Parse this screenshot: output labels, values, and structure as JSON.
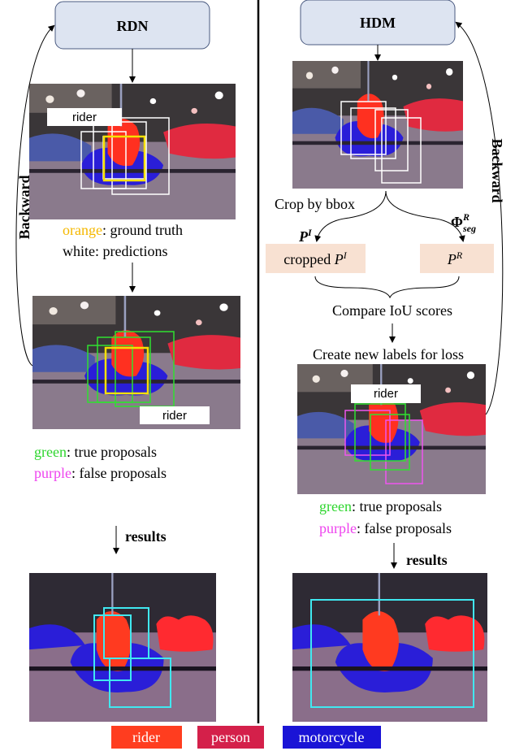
{
  "left": {
    "title": "RDN",
    "backward": "Backward",
    "image1_label": "rider",
    "legend_gt": {
      "color_word": "orange",
      "rest": ": ground truth"
    },
    "legend_pred": {
      "color_word": "white",
      "rest": ": predictions"
    },
    "image2_label": "rider",
    "legend_true": {
      "color_word": "green",
      "rest": ": true proposals"
    },
    "legend_false": {
      "color_word": "purple",
      "rest": ": false proposals"
    },
    "results": "results"
  },
  "right": {
    "title": "HDM",
    "backward": "Backward",
    "crop": "Crop by bbox",
    "branch_left": {
      "var": "P",
      "sup": "I"
    },
    "branch_right": {
      "var": "Φ",
      "sup": "R",
      "sub": "seg"
    },
    "box_left": {
      "text": "cropped ",
      "var": "P",
      "sup": "I"
    },
    "box_right": {
      "var": "P",
      "sup": "R"
    },
    "compare": "Compare IoU scores",
    "create": "Create new labels for loss",
    "image2_label": "rider",
    "legend_true": {
      "color_word": "green",
      "rest": ": true proposals"
    },
    "legend_false": {
      "color_word": "purple",
      "rest": ": false proposals"
    },
    "results": "results"
  },
  "class_legend": [
    "rider",
    "person",
    "motorcycle"
  ]
}
